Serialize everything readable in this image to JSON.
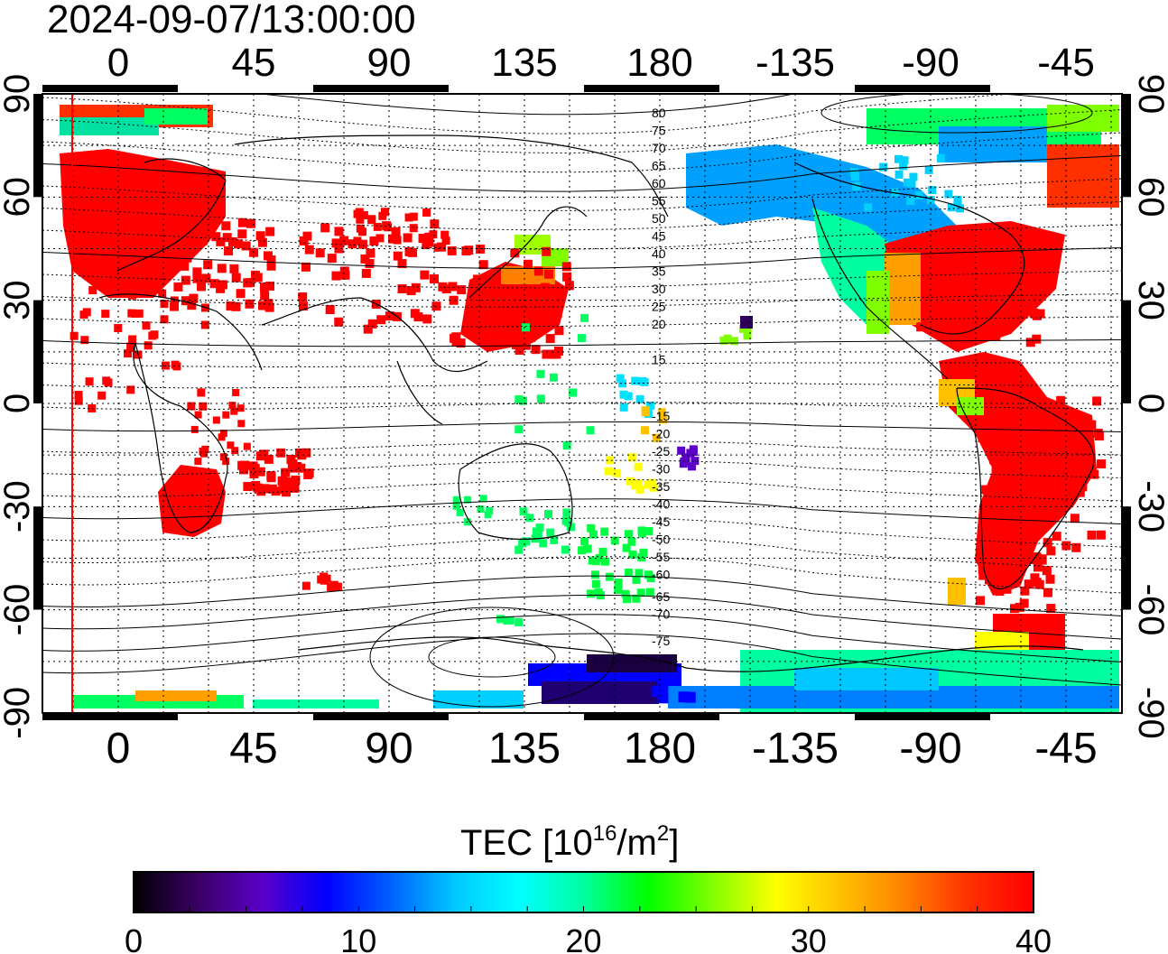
{
  "timestamp": "2024-09-07/13:00:00",
  "map": {
    "lon_tick_labels": [
      "0",
      "45",
      "90",
      "135",
      "180",
      "-135",
      "-90",
      "-45"
    ],
    "lat_tick_labels": [
      "90",
      "60",
      "30",
      "0",
      "-30",
      "-60",
      "-90"
    ],
    "projection": "equirectangular",
    "grid": "dotted"
  },
  "contours": {
    "north_labels": [
      "80",
      "75",
      "70",
      "65",
      "60",
      "55",
      "50",
      "45",
      "40",
      "35",
      "30",
      "25",
      "20",
      "15"
    ],
    "south_labels": [
      "-15",
      "-20",
      "-25",
      "-30",
      "-35",
      "-40",
      "-45",
      "-50",
      "-55",
      "-60",
      "-65",
      "-70",
      "-75"
    ]
  },
  "colorbar": {
    "label_main": "TEC  [10",
    "label_sup1": "16",
    "label_mid": "/m",
    "label_sup2": "2",
    "label_end": "]",
    "min": 0,
    "max": 40,
    "tick_labels": [
      "0",
      "10",
      "20",
      "30",
      "40"
    ],
    "stops": [
      "#000000",
      "#3a0064",
      "#5a00c8",
      "#0000ff",
      "#0060ff",
      "#00c8ff",
      "#00ffff",
      "#00ffa0",
      "#00ff00",
      "#80ff00",
      "#ffff00",
      "#ffc000",
      "#ff8000",
      "#ff3000",
      "#ff0000"
    ]
  },
  "legend_colors": {
    "high": "#ff0000",
    "mid": "#00ff00",
    "low": "#0000ff",
    "terminator_line": "#ff0000"
  }
}
